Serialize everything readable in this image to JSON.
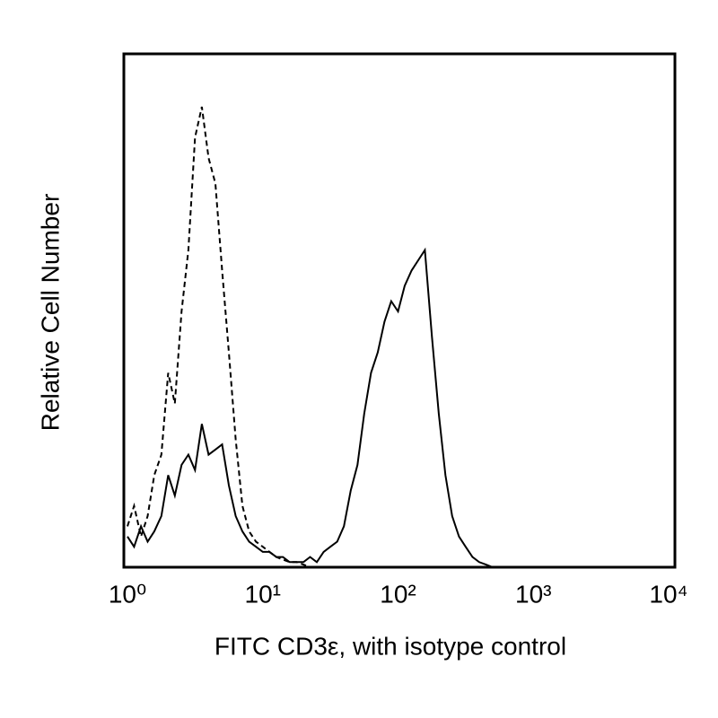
{
  "chart_data": {
    "type": "line",
    "xlabel": "FITC CD3ε, with isotype control",
    "ylabel": "Relative Cell Number",
    "xscale": "log",
    "xlim": [
      1,
      10000
    ],
    "ylim": [
      0,
      100
    ],
    "xticks": [
      {
        "value": 1,
        "label": "10⁰"
      },
      {
        "value": 10,
        "label": "10¹"
      },
      {
        "value": 100,
        "label": "10²"
      },
      {
        "value": 1000,
        "label": "10³"
      },
      {
        "value": 10000,
        "label": "10⁴"
      }
    ],
    "x": [
      1,
      1.12,
      1.26,
      1.41,
      1.58,
      1.78,
      2,
      2.24,
      2.51,
      2.82,
      3.16,
      3.55,
      3.98,
      4.47,
      5.01,
      5.62,
      6.31,
      7.08,
      7.94,
      8.91,
      10,
      11.2,
      12.6,
      14.1,
      15.8,
      17.8,
      20,
      22.4,
      25.1,
      28.2,
      31.6,
      35.5,
      39.8,
      44.7,
      50.1,
      56.2,
      63.1,
      70.8,
      79.4,
      89.1,
      100,
      112,
      126,
      141,
      158,
      178,
      200,
      224,
      251,
      282,
      316,
      355,
      398,
      447,
      501
    ],
    "series": [
      {
        "color": "#000000",
        "dash": true,
        "values": [
          8,
          12,
          6,
          10,
          18,
          22,
          38,
          32,
          50,
          62,
          84,
          90,
          80,
          75,
          58,
          42,
          25,
          12,
          7,
          5,
          4,
          3,
          2,
          1.5,
          1,
          1,
          0.5,
          0,
          null,
          null,
          null,
          null,
          null,
          null,
          null,
          null,
          null,
          null,
          null,
          null,
          null,
          null,
          null,
          null,
          null,
          null,
          null,
          null,
          null,
          null,
          null,
          null,
          null,
          null,
          null
        ]
      },
      {
        "color": "#000000",
        "dash": false,
        "values": [
          6,
          4,
          8,
          5,
          7,
          10,
          18,
          14,
          20,
          22,
          19,
          28,
          22,
          23,
          24,
          16,
          10,
          7,
          5,
          4,
          3,
          3,
          2,
          2,
          1,
          1,
          1,
          2,
          1,
          3,
          4,
          5,
          8,
          15,
          20,
          30,
          38,
          42,
          48,
          52,
          50,
          55,
          58,
          60,
          62,
          45,
          30,
          18,
          10,
          6,
          4,
          2,
          1,
          0.5,
          0
        ]
      }
    ]
  }
}
